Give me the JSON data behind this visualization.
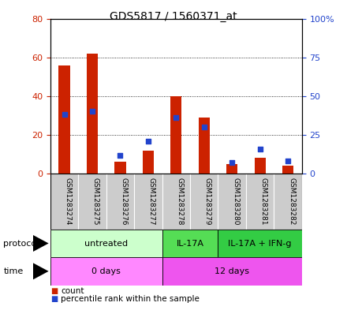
{
  "title": "GDS5817 / 1560371_at",
  "samples": [
    "GSM1283274",
    "GSM1283275",
    "GSM1283276",
    "GSM1283277",
    "GSM1283278",
    "GSM1283279",
    "GSM1283280",
    "GSM1283281",
    "GSM1283282"
  ],
  "counts": [
    56,
    62,
    6,
    12,
    40,
    29,
    5,
    8,
    4
  ],
  "percentile_ranks": [
    38,
    40,
    12,
    21,
    36,
    30,
    7,
    16,
    8
  ],
  "ylim_left": [
    0,
    80
  ],
  "ylim_right": [
    0,
    100
  ],
  "yticks_left": [
    0,
    20,
    40,
    60,
    80
  ],
  "yticks_right": [
    0,
    25,
    50,
    75,
    100
  ],
  "yticklabels_right": [
    "0",
    "25",
    "50",
    "75",
    "100%"
  ],
  "bar_color": "#cc2200",
  "dot_color": "#2244cc",
  "protocol_groups": [
    {
      "label": "untreated",
      "start": 0,
      "end": 4,
      "color": "#ccffcc"
    },
    {
      "label": "IL-17A",
      "start": 4,
      "end": 6,
      "color": "#55dd55"
    },
    {
      "label": "IL-17A + IFN-g",
      "start": 6,
      "end": 9,
      "color": "#33cc44"
    }
  ],
  "time_groups": [
    {
      "label": "0 days",
      "start": 0,
      "end": 4,
      "color": "#ff88ff"
    },
    {
      "label": "12 days",
      "start": 4,
      "end": 9,
      "color": "#ee55ee"
    }
  ],
  "protocol_label": "protocol",
  "time_label": "time",
  "legend_count": "count",
  "legend_percentile": "percentile rank within the sample",
  "bar_width": 0.4,
  "dot_size": 20,
  "sample_box_color": "#cccccc",
  "plot_bg": "#ffffff"
}
